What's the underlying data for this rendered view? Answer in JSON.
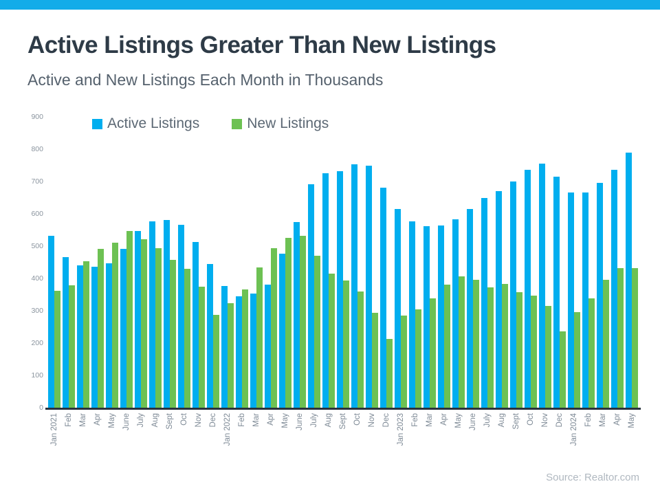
{
  "banner": {
    "color": "#12ace9"
  },
  "header": {
    "title": "Active Listings Greater Than New Listings",
    "subtitle": "Active and New Listings Each Month in Thousands"
  },
  "legend": [
    {
      "label": "Active Listings",
      "color": "#00aeef"
    },
    {
      "label": "New Listings",
      "color": "#6dc153"
    }
  ],
  "source": "Source: Realtor.com",
  "chart_data": {
    "type": "bar",
    "title": "Active Listings Greater Than New Listings",
    "subtitle": "Active and New Listings Each Month in Thousands",
    "xlabel": "",
    "ylabel": "",
    "ylim": [
      0,
      900
    ],
    "yticks": [
      0,
      100,
      200,
      300,
      400,
      500,
      600,
      700,
      800,
      900
    ],
    "grid": false,
    "legend_position": "top",
    "categories": [
      "Jan 2021",
      "Feb",
      "Mar",
      "Apr",
      "May",
      "June",
      "July",
      "Aug",
      "Sept",
      "Oct",
      "Nov",
      "Dec",
      "Jan 2022",
      "Feb",
      "Mar",
      "Apr",
      "May",
      "June",
      "July",
      "Aug",
      "Sept",
      "Oct",
      "Nov",
      "Dec",
      "Jan 2023",
      "Feb",
      "Mar",
      "Apr",
      "May",
      "June",
      "July",
      "Aug",
      "Sept",
      "Oct",
      "Nov",
      "Dec",
      "Jan 2024",
      "Feb",
      "Mar",
      "Apr",
      "May"
    ],
    "series": [
      {
        "name": "Active Listings",
        "color": "#00aeef",
        "values": [
          533,
          465,
          441,
          437,
          447,
          491,
          547,
          576,
          580,
          567,
          513,
          445,
          377,
          345,
          353,
          380,
          477,
          574,
          692,
          726,
          731,
          754,
          750,
          682,
          616,
          577,
          562,
          564,
          583,
          616,
          648,
          670,
          701,
          737,
          755,
          715,
          665,
          665,
          696,
          736,
          790
        ]
      },
      {
        "name": "New Listings",
        "color": "#6dc153",
        "values": [
          362,
          378,
          454,
          492,
          511,
          547,
          521,
          494,
          458,
          429,
          375,
          287,
          324,
          366,
          434,
          494,
          526,
          532,
          471,
          416,
          393,
          359,
          293,
          212,
          285,
          305,
          339,
          381,
          406,
          396,
          372,
          384,
          357,
          347,
          315,
          236,
          295,
          338,
          396,
          431,
          432
        ]
      }
    ]
  }
}
